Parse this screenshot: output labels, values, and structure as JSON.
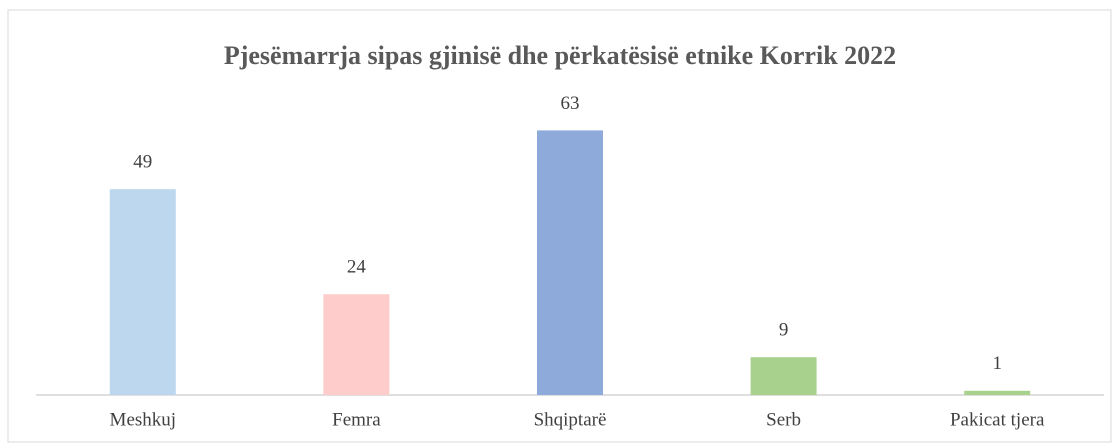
{
  "chart_data": {
    "type": "bar",
    "title": "Pjesëmarrja  sipas gjinisë  dhe përkatësisë etnike Korrik  2022",
    "categories": [
      "Meshkuj",
      "Femra",
      "Shqiptarë",
      "Serb",
      "Pakicat tjera"
    ],
    "values": [
      49,
      24,
      63,
      9,
      1
    ],
    "colors": [
      "#bdd7ee",
      "#ffcccc",
      "#8eaadb",
      "#a9d18e",
      "#a9d18e"
    ],
    "ylim": [
      0,
      70
    ]
  }
}
